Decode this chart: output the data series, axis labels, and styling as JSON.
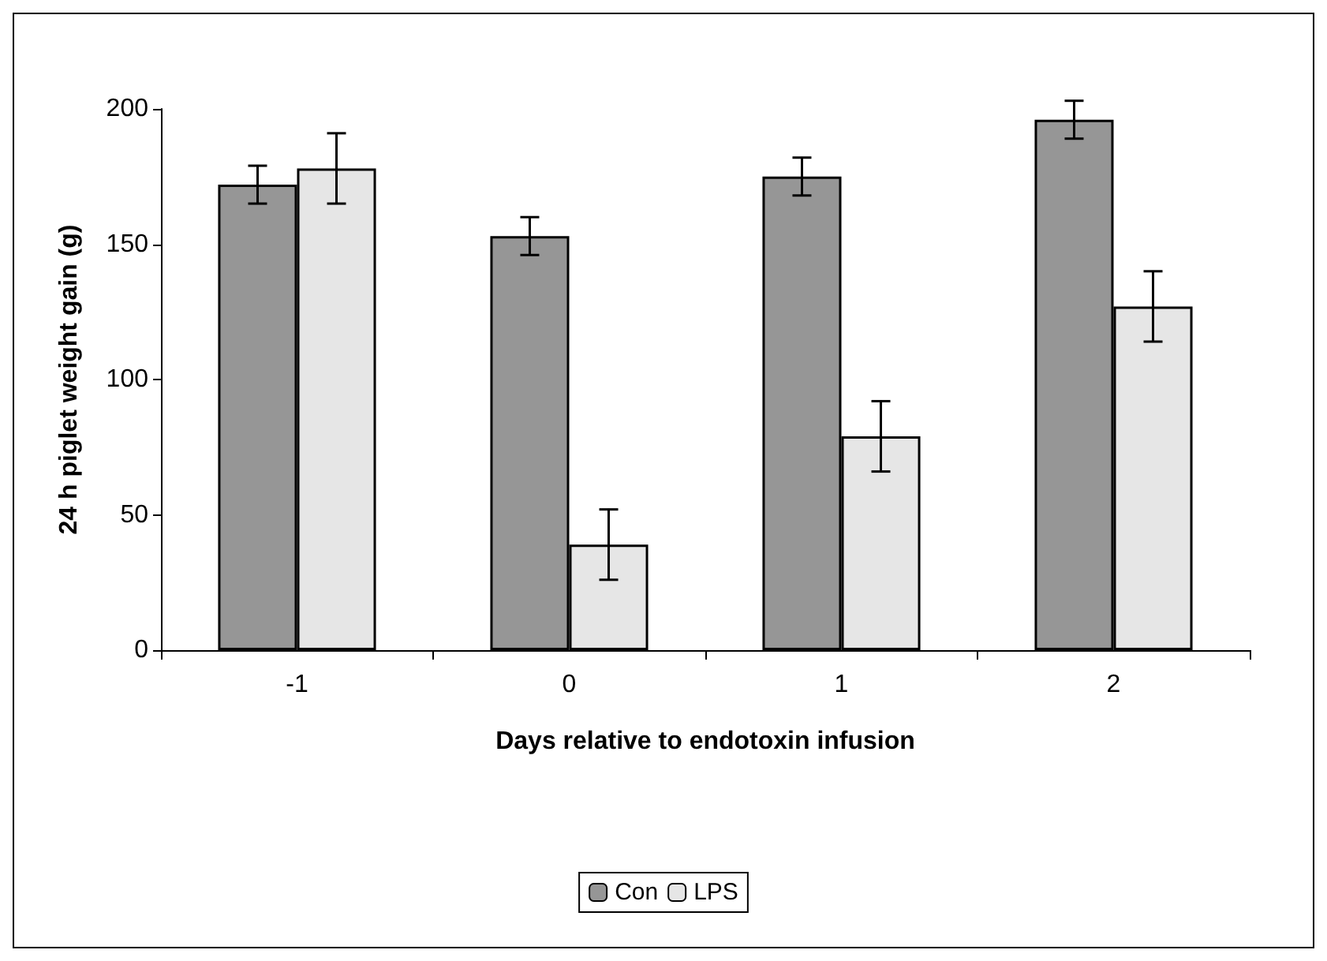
{
  "chart_data": {
    "type": "bar",
    "xlabel": "Days relative to endotoxin infusion",
    "ylabel": "24 h piglet weight gain (g)",
    "categories": [
      "-1",
      "0",
      "1",
      "2"
    ],
    "series": [
      {
        "name": "Con",
        "color": "#969696",
        "values": [
          172,
          153,
          175,
          196
        ],
        "errors": [
          7,
          7,
          7,
          7
        ]
      },
      {
        "name": "LPS",
        "color": "#e6e6e6",
        "values": [
          178,
          39,
          79,
          127
        ],
        "errors": [
          13,
          13,
          13,
          13
        ]
      }
    ],
    "ylim": [
      0,
      200
    ],
    "yticks": [
      0,
      50,
      100,
      150,
      200
    ],
    "grid": false,
    "legend": "bottom"
  }
}
